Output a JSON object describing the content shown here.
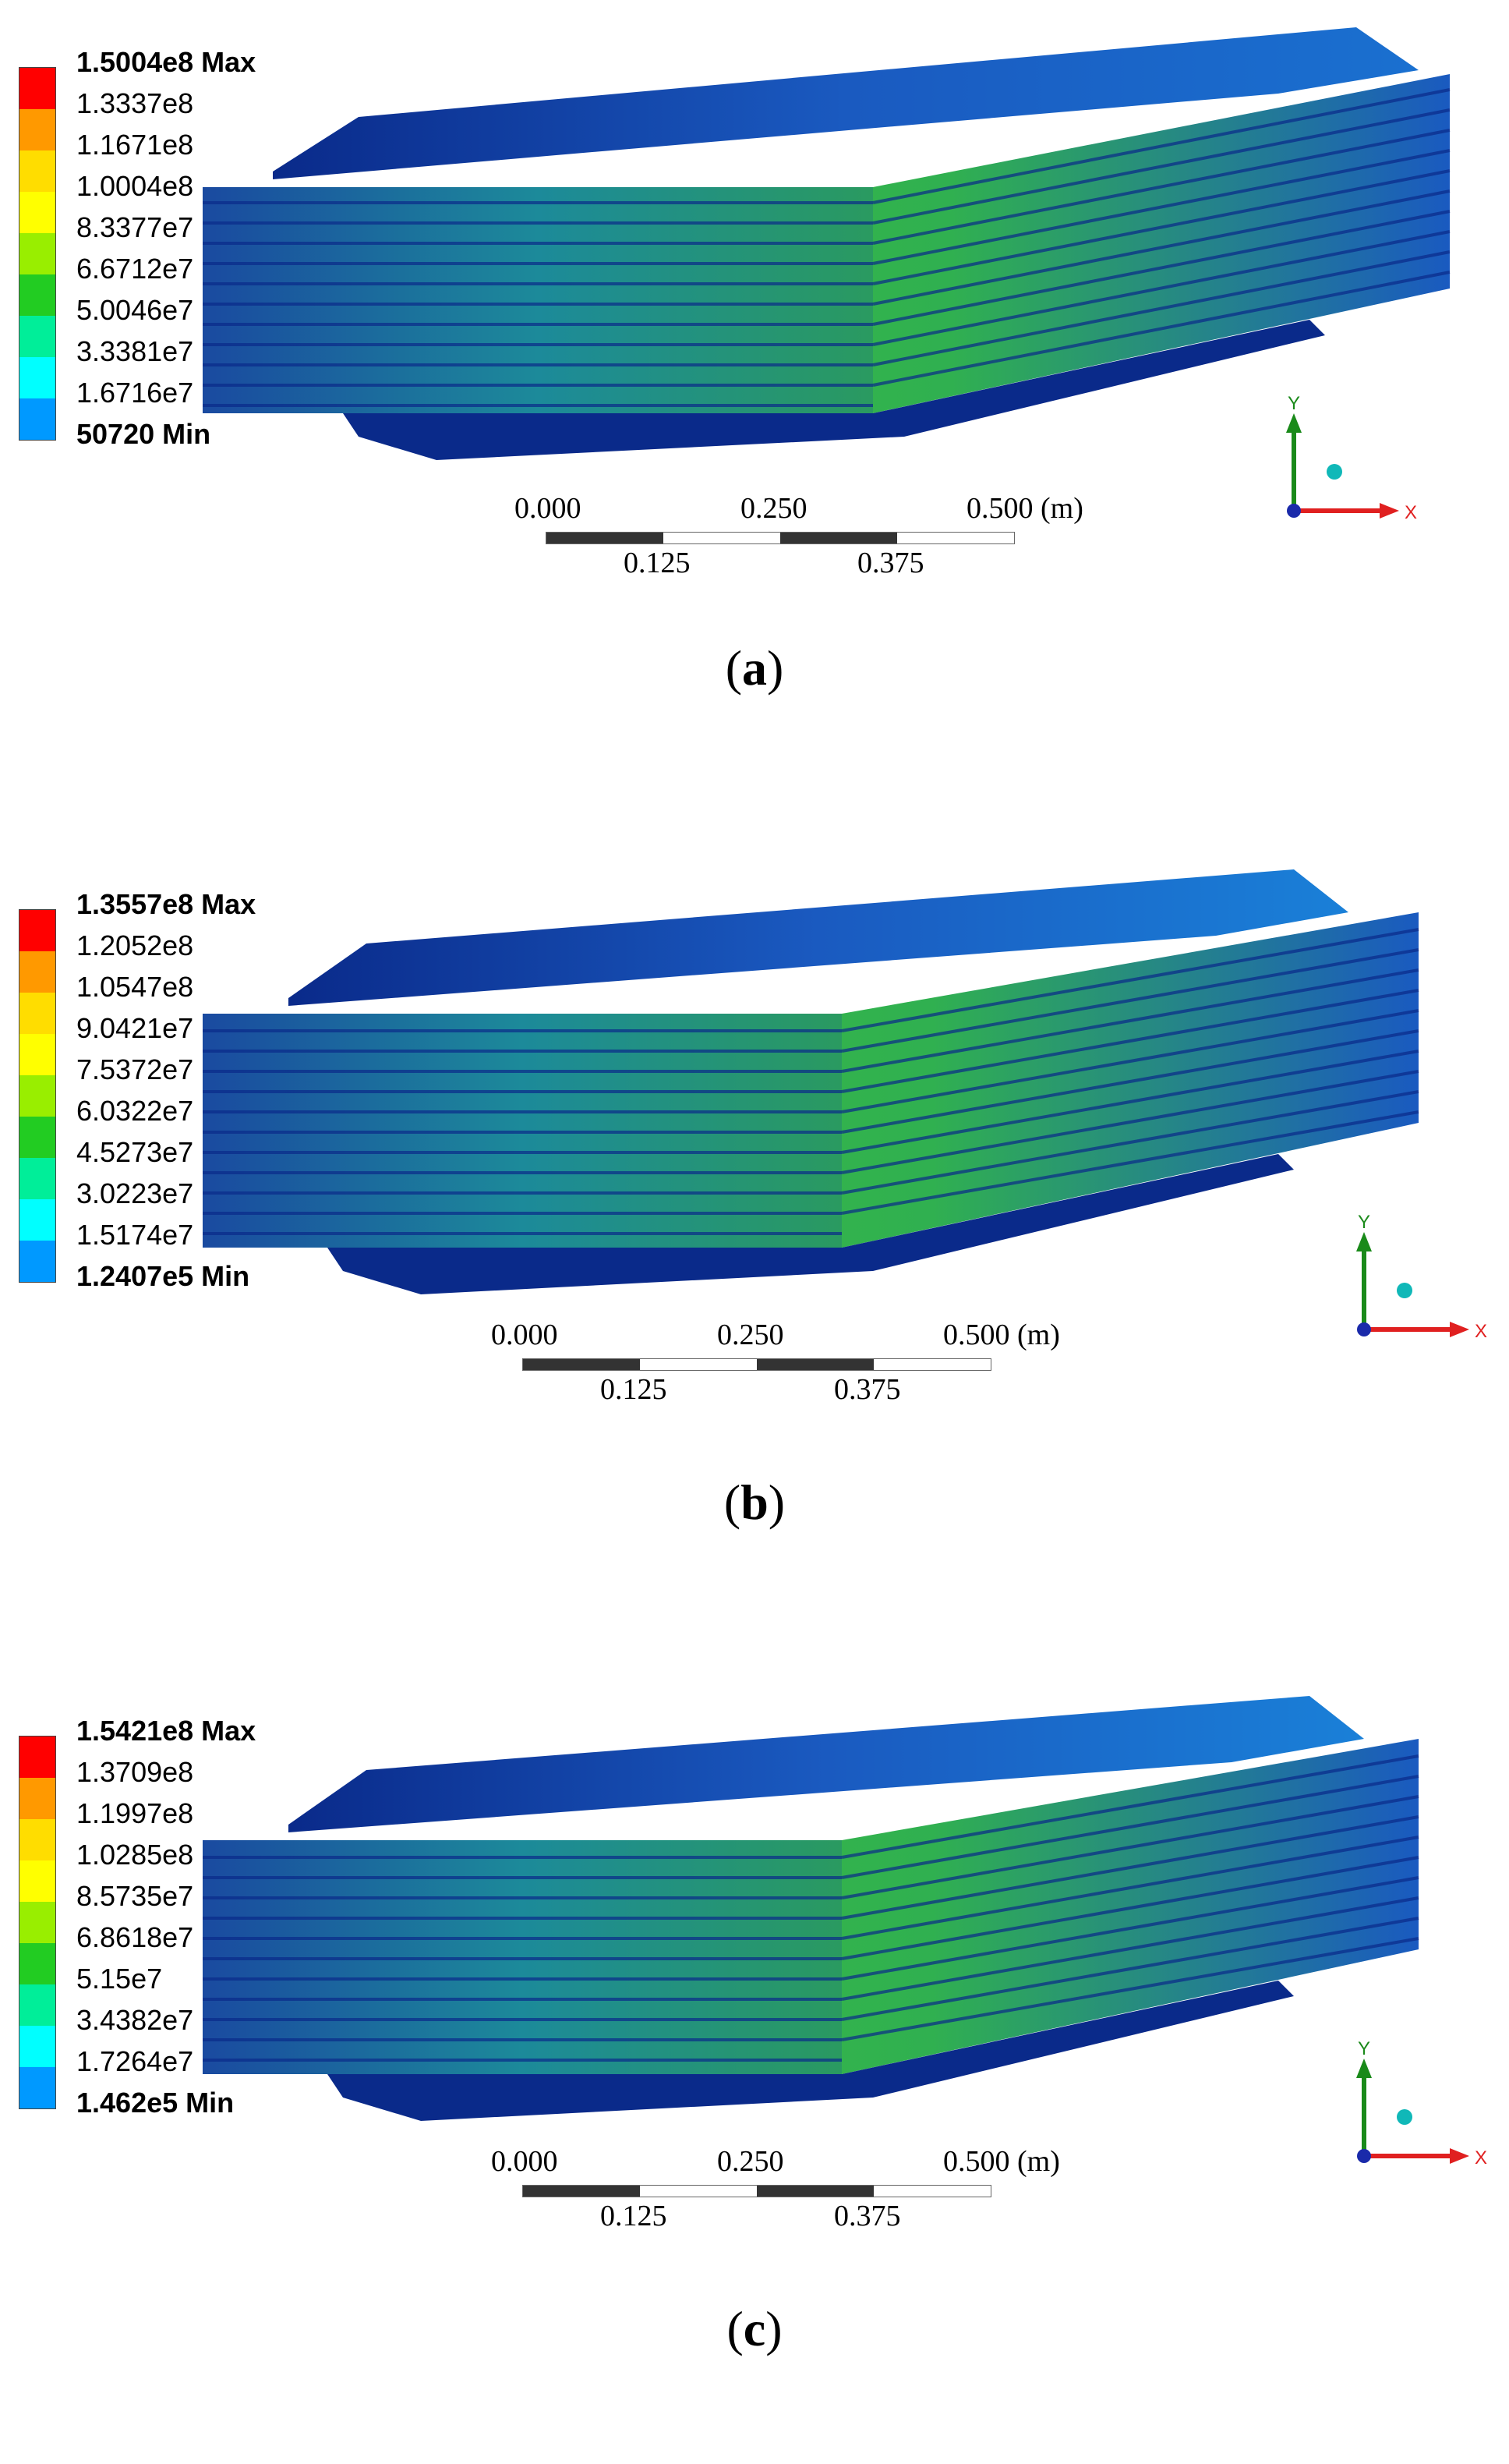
{
  "panels": [
    {
      "id": "a",
      "caption": "a",
      "legend": [
        "1.5004e8 Max",
        "1.3337e8",
        "1.1671e8",
        "1.0004e8",
        "8.3377e7",
        "6.6712e7",
        "5.0046e7",
        "3.3381e7",
        "1.6716e7",
        "50720 Min"
      ],
      "scale": {
        "top": [
          "0.000",
          "0.250",
          "0.500 (m)"
        ],
        "bottom": [
          "0.125",
          "0.375"
        ]
      },
      "axes": {
        "y": "Y",
        "x": "X"
      }
    },
    {
      "id": "b",
      "caption": "b",
      "legend": [
        "1.3557e8 Max",
        "1.2052e8",
        "1.0547e8",
        "9.0421e7",
        "7.5372e7",
        "6.0322e7",
        "4.5273e7",
        "3.0223e7",
        "1.5174e7",
        "1.2407e5 Min"
      ],
      "scale": {
        "top": [
          "0.000",
          "0.250",
          "0.500 (m)"
        ],
        "bottom": [
          "0.125",
          "0.375"
        ]
      },
      "axes": {
        "y": "Y",
        "x": "X"
      }
    },
    {
      "id": "c",
      "caption": "c",
      "legend": [
        "1.5421e8 Max",
        "1.3709e8",
        "1.1997e8",
        "1.0285e8",
        "8.5735e7",
        "6.8618e7",
        "5.15e7",
        "3.4382e7",
        "1.7264e7",
        "1.462e5 Min"
      ],
      "scale": {
        "top": [
          "0.000",
          "0.250",
          "0.500 (m)"
        ],
        "bottom": [
          "0.125",
          "0.375"
        ]
      },
      "axes": {
        "y": "Y",
        "x": "X"
      }
    }
  ],
  "colors": {
    "legend_swatches": [
      "#ff0000",
      "#ff9900",
      "#ffdd00",
      "#ffff00",
      "#99ee00",
      "#22cc22",
      "#00ee99",
      "#00ffff",
      "#0099ff",
      "#0022ff"
    ],
    "model_dark": "#0a2a8a",
    "model_mid": "#1a6acc",
    "model_green": "#3ec43a",
    "axis_y": "#1a8a1a",
    "axis_x": "#e02020",
    "axis_z": "#1a2aaa",
    "sphere": "#10b8b8"
  }
}
